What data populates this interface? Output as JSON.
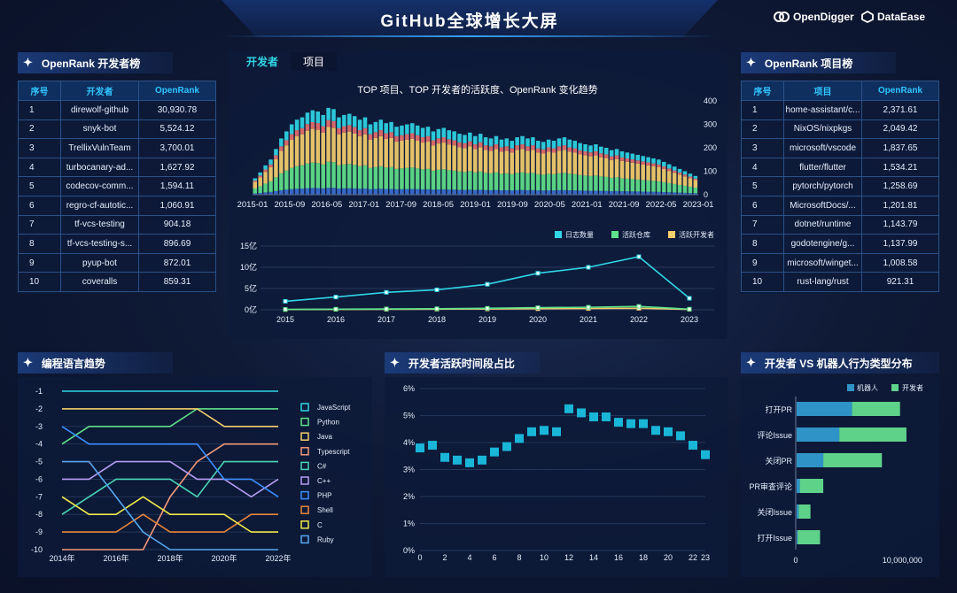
{
  "header": {
    "title": "GitHub全球增长大屏",
    "logo1": "OpenDigger",
    "logo2": "DataEase"
  },
  "colors": {
    "cyan": "#2fd6e6",
    "green": "#5fe28a",
    "yellow": "#f6cf6d",
    "accent": "#2fc6ff"
  },
  "dev_rank": {
    "title": "OpenRank 开发者榜",
    "headers": [
      "序号",
      "开发者",
      "OpenRank"
    ],
    "rows": [
      [
        "1",
        "direwolf-github",
        "30,930.78"
      ],
      [
        "2",
        "snyk-bot",
        "5,524.12"
      ],
      [
        "3",
        "TrellixVulnTeam",
        "3,700.01"
      ],
      [
        "4",
        "turbocanary-ad...",
        "1,627.92"
      ],
      [
        "5",
        "codecov-comm...",
        "1,594.11"
      ],
      [
        "6",
        "regro-cf-autotic...",
        "1,060.91"
      ],
      [
        "7",
        "tf-vcs-testing",
        "904.18"
      ],
      [
        "8",
        "tf-vcs-testing-s...",
        "896.69"
      ],
      [
        "9",
        "pyup-bot",
        "872.01"
      ],
      [
        "10",
        "coveralls",
        "859.31"
      ]
    ]
  },
  "proj_rank": {
    "title": "OpenRank 项目榜",
    "headers": [
      "序号",
      "项目",
      "OpenRank"
    ],
    "rows": [
      [
        "1",
        "home-assistant/c...",
        "2,371.61"
      ],
      [
        "2",
        "NixOS/nixpkgs",
        "2,049.42"
      ],
      [
        "3",
        "microsoft/vscode",
        "1,837.65"
      ],
      [
        "4",
        "flutter/flutter",
        "1,534.21"
      ],
      [
        "5",
        "pytorch/pytorch",
        "1,258.69"
      ],
      [
        "6",
        "MicrosoftDocs/...",
        "1,201.81"
      ],
      [
        "7",
        "dotnet/runtime",
        "1,143.79"
      ],
      [
        "8",
        "godotengine/g...",
        "1,137.99"
      ],
      [
        "9",
        "microsoft/winget...",
        "1,008.58"
      ],
      [
        "10",
        "rust-lang/rust",
        "921.31"
      ]
    ]
  },
  "center": {
    "tabs": [
      "开发者",
      "项目"
    ],
    "active_tab": 0,
    "top_chart_title": "TOP 项目、TOP 开发者的活跃度、OpenRank 变化趋势"
  },
  "titles": {
    "lang": "编程语言趋势",
    "hours": "开发者活跃时间段占比",
    "bot": "开发者 VS 机器人行为类型分布"
  },
  "chart_data": [
    {
      "type": "bar",
      "title": "TOP 项目、TOP 开发者的活跃度、OpenRank 变化趋势",
      "x_ticks": [
        "2015-01",
        "2015-09",
        "2016-05",
        "2017-01",
        "2017-09",
        "2018-05",
        "2019-01",
        "2019-09",
        "2020-05",
        "2021-01",
        "2021-09",
        "2022-05",
        "2023-01"
      ],
      "y_ticks": [
        "0",
        "100",
        "200",
        "300",
        "400"
      ],
      "ylim": [
        0,
        400
      ],
      "stacked": true,
      "totals": [
        70,
        95,
        125,
        150,
        195,
        240,
        270,
        300,
        320,
        330,
        350,
        360,
        355,
        340,
        370,
        365,
        330,
        340,
        345,
        335,
        320,
        330,
        300,
        310,
        320,
        305,
        310,
        290,
        295,
        300,
        305,
        295,
        285,
        290,
        270,
        280,
        285,
        275,
        270,
        260,
        255,
        265,
        250,
        260,
        245,
        240,
        250,
        235,
        240,
        230,
        245,
        250,
        240,
        245,
        230,
        225,
        235,
        230,
        240,
        245,
        235,
        230,
        220,
        215,
        210,
        215,
        205,
        200,
        190,
        195,
        185,
        180,
        175,
        170,
        165,
        160,
        155,
        150,
        140,
        130,
        120,
        110,
        100,
        90,
        80
      ],
      "stack_fractions": [
        0.08,
        0.3,
        0.4,
        0.08,
        0.14
      ]
    },
    {
      "type": "line",
      "categories": [
        "2015",
        "2016",
        "2017",
        "2018",
        "2019",
        "2020",
        "2021",
        "2022",
        "2023"
      ],
      "y_ticks": [
        "0亿",
        "5亿",
        "10亿",
        "15亿"
      ],
      "ylim": [
        0,
        15
      ],
      "series": [
        {
          "name": "日志数量",
          "values": [
            2.0,
            3.0,
            4.1,
            4.7,
            6.0,
            8.6,
            10.0,
            12.5,
            2.7
          ]
        },
        {
          "name": "活跃仓库",
          "values": [
            0.1,
            0.15,
            0.2,
            0.25,
            0.35,
            0.5,
            0.6,
            0.8,
            0.15
          ]
        },
        {
          "name": "活跃开发者",
          "values": [
            0.05,
            0.1,
            0.12,
            0.15,
            0.2,
            0.25,
            0.3,
            0.35,
            0.1
          ]
        }
      ]
    },
    {
      "type": "line",
      "title": "编程语言趋势",
      "categories": [
        "2014",
        "2015",
        "2016",
        "2017",
        "2018",
        "2019",
        "2020",
        "2021",
        "2022"
      ],
      "x_ticks": [
        "2014年",
        "2016年",
        "2018年",
        "2020年",
        "2022年"
      ],
      "y_ticks": [
        "-1",
        "-2",
        "-3",
        "-4",
        "-5",
        "-6",
        "-7",
        "-8",
        "-9",
        "-10"
      ],
      "ylim": [
        -10,
        -1
      ],
      "series": [
        {
          "name": "JavaScript",
          "values": [
            -1,
            -1,
            -1,
            -1,
            -1,
            -1,
            -1,
            -1,
            -1
          ]
        },
        {
          "name": "Python",
          "values": [
            -4,
            -3,
            -3,
            -3,
            -3,
            -2,
            -2,
            -2,
            -2
          ]
        },
        {
          "name": "Java",
          "values": [
            -2,
            -2,
            -2,
            -2,
            -2,
            -2,
            -3,
            -3,
            -3
          ]
        },
        {
          "name": "Typescript",
          "values": [
            -10,
            -10,
            -10,
            -10,
            -7,
            -5,
            -4,
            -4,
            -4
          ]
        },
        {
          "name": "C#",
          "values": [
            -8,
            -7,
            -6,
            -6,
            -6,
            -7,
            -5,
            -5,
            -5
          ]
        },
        {
          "name": "C++",
          "values": [
            -6,
            -6,
            -5,
            -5,
            -5,
            -6,
            -6,
            -7,
            -6
          ]
        },
        {
          "name": "PHP",
          "values": [
            -3,
            -4,
            -4,
            -4,
            -4,
            -4,
            -6,
            -6,
            -7
          ]
        },
        {
          "name": "Shell",
          "values": [
            -9,
            -9,
            -9,
            -8,
            -9,
            -9,
            -9,
            -8,
            -8
          ]
        },
        {
          "name": "C",
          "values": [
            -7,
            -8,
            -8,
            -7,
            -8,
            -8,
            -8,
            -9,
            -9
          ]
        },
        {
          "name": "Ruby",
          "values": [
            -5,
            -5,
            -7,
            -9,
            -10,
            -10,
            -10,
            -10,
            -10
          ]
        }
      ],
      "legend": "right"
    },
    {
      "type": "scatter",
      "title": "开发者活跃时间段占比",
      "x": [
        0,
        1,
        2,
        3,
        4,
        5,
        6,
        7,
        8,
        9,
        10,
        11,
        12,
        13,
        14,
        15,
        16,
        17,
        18,
        19,
        20,
        21,
        22,
        23
      ],
      "y": [
        3.8,
        3.9,
        3.45,
        3.35,
        3.25,
        3.35,
        3.65,
        3.85,
        4.15,
        4.4,
        4.45,
        4.4,
        5.25,
        5.1,
        4.95,
        4.95,
        4.75,
        4.7,
        4.7,
        4.45,
        4.4,
        4.25,
        3.9,
        3.55
      ],
      "x_ticks": [
        "0",
        "2",
        "4",
        "6",
        "8",
        "10",
        "12",
        "14",
        "16",
        "18",
        "20",
        "22",
        "23"
      ],
      "y_ticks": [
        "0%",
        "1%",
        "2%",
        "3%",
        "4%",
        "5%",
        "6%"
      ],
      "ylim": [
        0,
        6
      ]
    },
    {
      "type": "bar",
      "orientation": "horizontal",
      "title": "开发者 VS 机器人行为类型分布",
      "categories": [
        "打开PR",
        "评论Issue",
        "关闭PR",
        "PR审查评论",
        "关闭Issue",
        "打开Issue"
      ],
      "series": [
        {
          "name": "机器人",
          "values": [
            5200000,
            4000000,
            2500000,
            300000,
            200000,
            100000
          ]
        },
        {
          "name": "开发者",
          "values": [
            4500000,
            6300000,
            5500000,
            2200000,
            1100000,
            2100000
          ]
        }
      ],
      "x_ticks": [
        "0",
        "10,000,000"
      ],
      "legend": "top-right"
    }
  ]
}
